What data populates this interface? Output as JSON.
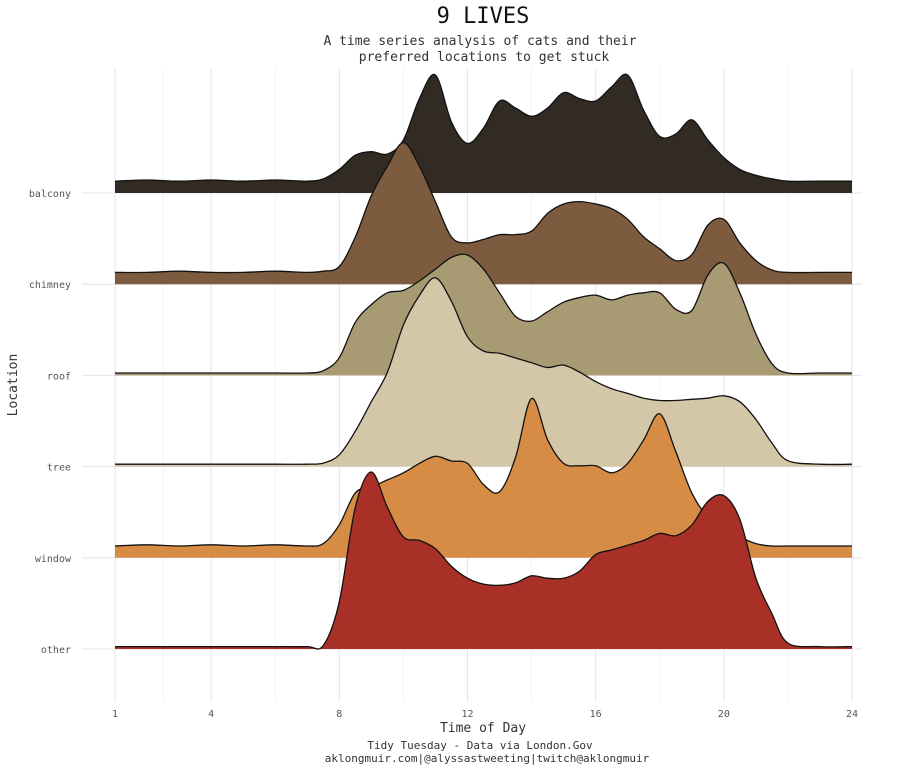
{
  "title": "9 LIVES",
  "subtitle_lines": [
    "A time series analysis of cats and their",
    "preferred locations to get stuck"
  ],
  "caption_lines": [
    "Tidy Tuesday - Data via London.Gov",
    "aklongmuir.com|@alyssastweeting|twitch@aklongmuir"
  ],
  "chart_data": {
    "type": "area",
    "xlabel": "Time of Day",
    "ylabel": "Location",
    "xlim": [
      1,
      24
    ],
    "x_ticks": [
      1,
      4,
      8,
      12,
      16,
      20,
      24
    ],
    "x_minor_ticks": [
      2.5,
      6,
      10,
      14,
      18,
      22
    ],
    "grid": true,
    "legend": "none",
    "x": [
      1,
      2,
      3,
      4,
      5,
      6,
      7,
      7.5,
      8,
      8.5,
      9,
      9.5,
      10,
      10.5,
      11,
      11.5,
      12,
      12.5,
      13,
      13.5,
      14,
      14.5,
      15,
      15.5,
      16,
      16.5,
      17,
      17.5,
      18,
      18.5,
      19,
      19.5,
      20,
      20.5,
      21,
      21.5,
      22,
      23,
      24
    ],
    "series": [
      {
        "name": "balcony",
        "color": "#312b24",
        "values": [
          0.1,
          0.11,
          0.1,
          0.11,
          0.1,
          0.11,
          0.1,
          0.12,
          0.2,
          0.32,
          0.35,
          0.33,
          0.45,
          0.8,
          1.0,
          0.6,
          0.42,
          0.55,
          0.78,
          0.72,
          0.65,
          0.72,
          0.85,
          0.8,
          0.78,
          0.9,
          1.0,
          0.7,
          0.48,
          0.5,
          0.62,
          0.45,
          0.3,
          0.2,
          0.15,
          0.12,
          0.1,
          0.1,
          0.1
        ]
      },
      {
        "name": "chimney",
        "color": "#7d5b3f",
        "values": [
          0.1,
          0.1,
          0.11,
          0.1,
          0.1,
          0.11,
          0.1,
          0.11,
          0.15,
          0.4,
          0.75,
          1.0,
          1.2,
          1.0,
          0.7,
          0.4,
          0.35,
          0.38,
          0.42,
          0.42,
          0.45,
          0.6,
          0.68,
          0.7,
          0.68,
          0.64,
          0.55,
          0.4,
          0.3,
          0.2,
          0.25,
          0.5,
          0.55,
          0.35,
          0.2,
          0.12,
          0.1,
          0.1,
          0.1
        ]
      },
      {
        "name": "roof",
        "color": "#a89b74",
        "values": [
          0.02,
          0.02,
          0.02,
          0.02,
          0.02,
          0.02,
          0.02,
          0.04,
          0.15,
          0.45,
          0.6,
          0.7,
          0.72,
          0.8,
          0.9,
          1.0,
          1.02,
          0.9,
          0.7,
          0.5,
          0.46,
          0.54,
          0.62,
          0.66,
          0.68,
          0.64,
          0.68,
          0.7,
          0.7,
          0.56,
          0.55,
          0.85,
          0.95,
          0.7,
          0.35,
          0.1,
          0.02,
          0.02,
          0.02
        ]
      },
      {
        "name": "tree",
        "color": "#d3c7a8",
        "values": [
          0.02,
          0.02,
          0.02,
          0.02,
          0.02,
          0.02,
          0.02,
          0.03,
          0.1,
          0.3,
          0.55,
          0.8,
          1.2,
          1.45,
          1.6,
          1.4,
          1.1,
          0.98,
          0.96,
          0.92,
          0.88,
          0.84,
          0.86,
          0.8,
          0.72,
          0.66,
          0.62,
          0.58,
          0.56,
          0.56,
          0.57,
          0.58,
          0.6,
          0.55,
          0.4,
          0.2,
          0.05,
          0.02,
          0.02
        ]
      },
      {
        "name": "window",
        "color": "#d78c46",
        "values": [
          0.1,
          0.11,
          0.1,
          0.11,
          0.1,
          0.11,
          0.1,
          0.12,
          0.28,
          0.55,
          0.6,
          0.66,
          0.72,
          0.8,
          0.86,
          0.82,
          0.8,
          0.62,
          0.56,
          0.85,
          1.35,
          1.0,
          0.8,
          0.78,
          0.78,
          0.72,
          0.8,
          1.0,
          1.22,
          0.9,
          0.55,
          0.35,
          0.28,
          0.18,
          0.12,
          0.1,
          0.1,
          0.1,
          0.1
        ]
      },
      {
        "name": "other",
        "color": "#a83027",
        "values": [
          0.02,
          0.02,
          0.02,
          0.02,
          0.02,
          0.02,
          0.02,
          0.03,
          0.4,
          1.2,
          1.5,
          1.2,
          0.95,
          0.92,
          0.85,
          0.7,
          0.6,
          0.55,
          0.54,
          0.56,
          0.62,
          0.6,
          0.6,
          0.66,
          0.8,
          0.84,
          0.88,
          0.92,
          0.98,
          0.96,
          1.05,
          1.25,
          1.3,
          1.1,
          0.6,
          0.3,
          0.05,
          0.02,
          0.02
        ]
      }
    ]
  }
}
